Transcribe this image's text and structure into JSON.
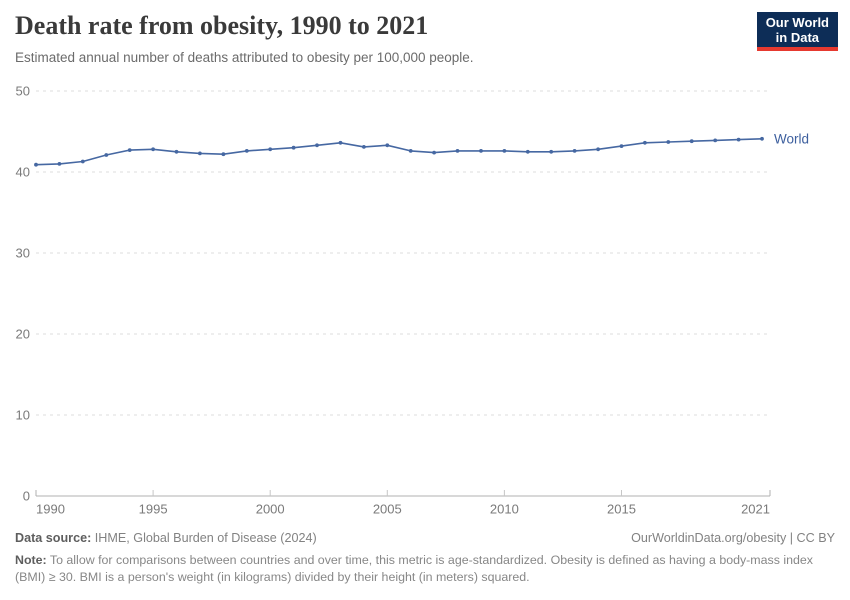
{
  "header": {
    "title": "Death rate from obesity, 1990 to 2021",
    "subtitle": "Estimated annual number of deaths attributed to obesity per 100,000 people.",
    "logo_line1": "Our World",
    "logo_line2": "in Data"
  },
  "chart_data": {
    "type": "line",
    "title": "Death rate from obesity, 1990 to 2021",
    "xlabel": "",
    "ylabel": "",
    "x": [
      1990,
      1991,
      1992,
      1993,
      1994,
      1995,
      1996,
      1997,
      1998,
      1999,
      2000,
      2001,
      2002,
      2003,
      2004,
      2005,
      2006,
      2007,
      2008,
      2009,
      2010,
      2011,
      2012,
      2013,
      2014,
      2015,
      2016,
      2017,
      2018,
      2019,
      2020,
      2021
    ],
    "series": [
      {
        "name": "World",
        "values": [
          40.9,
          41.0,
          41.3,
          42.1,
          42.7,
          42.8,
          42.5,
          42.3,
          42.2,
          42.6,
          42.8,
          43.0,
          43.3,
          43.6,
          43.1,
          43.3,
          42.6,
          42.4,
          42.6,
          42.6,
          42.6,
          42.5,
          42.5,
          42.6,
          42.8,
          43.2,
          43.6,
          43.7,
          43.8,
          43.9,
          44.0,
          44.1
        ]
      }
    ],
    "ylim": [
      0,
      50
    ],
    "yticks": [
      0,
      10,
      20,
      30,
      40,
      50
    ],
    "xticks": [
      1990,
      1995,
      2000,
      2005,
      2010,
      2015,
      2021
    ],
    "grid": "horizontal-dashed",
    "legend": "end-of-line-label",
    "end_label": "World"
  },
  "footer": {
    "source_label": "Data source:",
    "source_text": " IHME, Global Burden of Disease (2024)",
    "link_text": "OurWorldinData.org/obesity | CC BY",
    "note_label": "Note:",
    "note_text": " To allow for comparisons between countries and over time, this metric is age-standardized. Obesity is defined as having a body-mass index (BMI) ≥ 30. BMI is a person's weight (in kilograms) divided by their height (in meters) squared."
  },
  "colors": {
    "line": "#4668a2",
    "end_label": "#3d5f9e",
    "grid": "#dcdcdc",
    "axis": "#b0b0b0",
    "tick": "#c6c6c6",
    "tick_label": "#7a7a7a",
    "logo_bg": "#0d2d57",
    "logo_accent": "#e6392f"
  }
}
